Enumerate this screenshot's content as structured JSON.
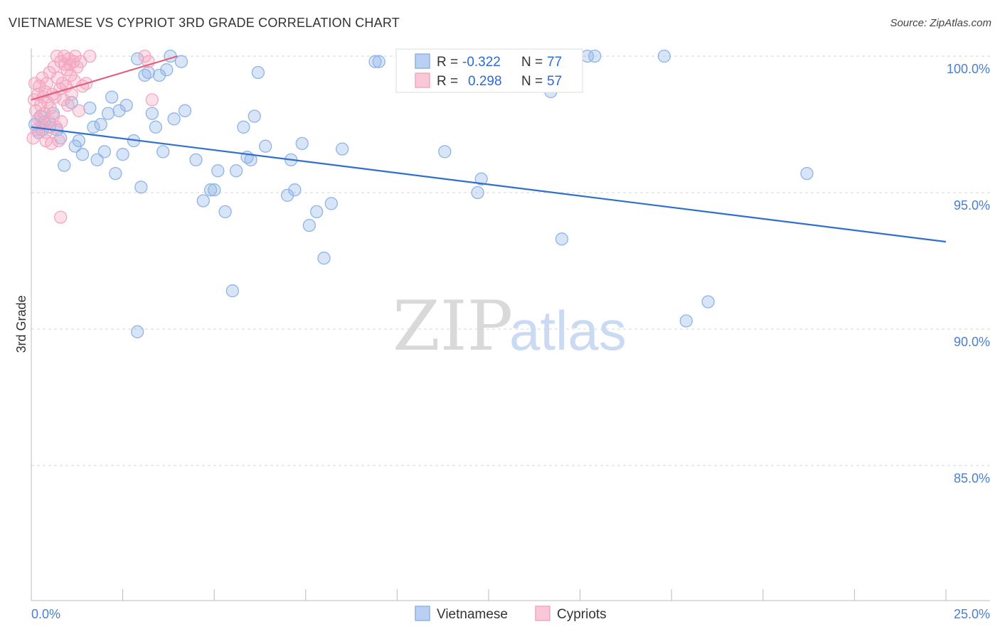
{
  "title": "VIETNAMESE VS CYPRIOT 3RD GRADE CORRELATION CHART",
  "source": "Source: ZipAtlas.com",
  "watermark": {
    "zip": "ZIP",
    "atlas": "atlas"
  },
  "chart_data": {
    "type": "scatter",
    "title": "VIETNAMESE VS CYPRIOT 3RD GRADE CORRELATION CHART",
    "xlabel": "",
    "ylabel": "3rd Grade",
    "xlim": [
      0,
      25
    ],
    "ylim": [
      80.5,
      101.5
    ],
    "x_tick_labels": {
      "left": "0.0%",
      "right": "25.0%"
    },
    "y_ticks": [
      {
        "value": 100,
        "label": "100.0%"
      },
      {
        "value": 95,
        "label": "95.0%"
      },
      {
        "value": 90,
        "label": "90.0%"
      },
      {
        "value": 85,
        "label": "85.0%"
      }
    ],
    "grid": true,
    "legend_position": "bottom",
    "stats_box": [
      {
        "r_label": "R =",
        "r_value": "-0.322",
        "n_label": "N =",
        "n_value": "77"
      },
      {
        "r_label": "R =",
        "r_value": "0.298",
        "n_label": "N =",
        "n_value": "57"
      }
    ],
    "series": [
      {
        "name": "Vietnamese",
        "color": "#8fb4e8",
        "line_color": "#2e6fd0",
        "trend": {
          "x0": 0.0,
          "y0": 97.4,
          "x1": 25.0,
          "y1": 93.2
        },
        "points": [
          [
            0.1,
            97.5
          ],
          [
            0.2,
            97.2
          ],
          [
            0.25,
            97.8
          ],
          [
            0.3,
            97.3
          ],
          [
            0.35,
            97.6
          ],
          [
            0.5,
            97.4
          ],
          [
            0.6,
            97.9
          ],
          [
            0.7,
            97.3
          ],
          [
            0.8,
            97.0
          ],
          [
            0.9,
            96.0
          ],
          [
            1.1,
            98.3
          ],
          [
            1.2,
            96.7
          ],
          [
            1.3,
            96.9
          ],
          [
            1.4,
            96.4
          ],
          [
            1.6,
            98.1
          ],
          [
            1.7,
            97.4
          ],
          [
            1.8,
            96.2
          ],
          [
            1.9,
            97.5
          ],
          [
            2.0,
            96.5
          ],
          [
            2.1,
            97.9
          ],
          [
            2.2,
            98.5
          ],
          [
            2.3,
            95.7
          ],
          [
            2.4,
            98.0
          ],
          [
            2.5,
            96.4
          ],
          [
            2.6,
            98.2
          ],
          [
            2.8,
            96.9
          ],
          [
            2.9,
            99.9
          ],
          [
            3.0,
            95.2
          ],
          [
            3.1,
            99.3
          ],
          [
            3.2,
            99.4
          ],
          [
            3.3,
            97.9
          ],
          [
            3.4,
            97.4
          ],
          [
            3.5,
            99.3
          ],
          [
            3.6,
            96.5
          ],
          [
            3.7,
            99.5
          ],
          [
            3.8,
            100.0
          ],
          [
            3.9,
            97.7
          ],
          [
            4.1,
            99.8
          ],
          [
            4.2,
            98.0
          ],
          [
            4.5,
            96.2
          ],
          [
            4.7,
            94.7
          ],
          [
            4.9,
            95.1
          ],
          [
            5.0,
            95.1
          ],
          [
            5.1,
            95.8
          ],
          [
            5.3,
            94.3
          ],
          [
            5.5,
            91.4
          ],
          [
            5.6,
            95.8
          ],
          [
            5.8,
            97.4
          ],
          [
            5.9,
            96.3
          ],
          [
            6.0,
            96.2
          ],
          [
            6.1,
            97.8
          ],
          [
            6.2,
            99.4
          ],
          [
            6.4,
            96.7
          ],
          [
            7.1,
            96.2
          ],
          [
            7.2,
            95.1
          ],
          [
            7.0,
            94.9
          ],
          [
            7.4,
            96.8
          ],
          [
            7.6,
            93.8
          ],
          [
            7.8,
            94.3
          ],
          [
            8.0,
            92.6
          ],
          [
            8.2,
            94.6
          ],
          [
            8.5,
            96.6
          ],
          [
            9.4,
            99.8
          ],
          [
            9.5,
            99.8
          ],
          [
            2.9,
            89.9
          ],
          [
            11.3,
            96.5
          ],
          [
            11.9,
            100.0
          ],
          [
            12.3,
            95.5
          ],
          [
            12.2,
            95.0
          ],
          [
            14.2,
            98.7
          ],
          [
            14.5,
            93.3
          ],
          [
            15.2,
            100.0
          ],
          [
            15.4,
            100.0
          ],
          [
            17.3,
            100.0
          ],
          [
            17.9,
            90.3
          ],
          [
            18.5,
            91.0
          ],
          [
            21.2,
            95.7
          ]
        ]
      },
      {
        "name": "Cypriots",
        "color": "#f4a7c0",
        "line_color": "#e0607e",
        "trend": {
          "x0": 0.0,
          "y0": 98.4,
          "x1": 4.0,
          "y1": 100.0
        },
        "points": [
          [
            0.05,
            97.0
          ],
          [
            0.08,
            98.4
          ],
          [
            0.1,
            99.0
          ],
          [
            0.12,
            98.0
          ],
          [
            0.15,
            97.3
          ],
          [
            0.18,
            98.6
          ],
          [
            0.2,
            97.7
          ],
          [
            0.22,
            98.9
          ],
          [
            0.25,
            98.2
          ],
          [
            0.28,
            97.5
          ],
          [
            0.3,
            99.2
          ],
          [
            0.32,
            98.5
          ],
          [
            0.35,
            97.9
          ],
          [
            0.38,
            98.7
          ],
          [
            0.4,
            97.2
          ],
          [
            0.42,
            99.0
          ],
          [
            0.45,
            98.3
          ],
          [
            0.48,
            97.6
          ],
          [
            0.5,
            99.4
          ],
          [
            0.52,
            98.1
          ],
          [
            0.55,
            96.8
          ],
          [
            0.58,
            98.6
          ],
          [
            0.6,
            97.8
          ],
          [
            0.62,
            99.6
          ],
          [
            0.65,
            98.5
          ],
          [
            0.68,
            97.4
          ],
          [
            0.7,
            100.0
          ],
          [
            0.72,
            99.2
          ],
          [
            0.75,
            96.9
          ],
          [
            0.78,
            98.8
          ],
          [
            0.8,
            99.8
          ],
          [
            0.82,
            97.6
          ],
          [
            0.85,
            99.0
          ],
          [
            0.88,
            98.4
          ],
          [
            0.9,
            100.0
          ],
          [
            0.92,
            99.7
          ],
          [
            0.95,
            98.9
          ],
          [
            0.98,
            99.5
          ],
          [
            1.0,
            98.2
          ],
          [
            1.02,
            99.9
          ],
          [
            1.05,
            99.7
          ],
          [
            1.08,
            99.3
          ],
          [
            1.1,
            98.6
          ],
          [
            1.15,
            99.8
          ],
          [
            1.18,
            99.1
          ],
          [
            1.2,
            100.0
          ],
          [
            1.25,
            99.6
          ],
          [
            1.3,
            98.0
          ],
          [
            1.35,
            99.8
          ],
          [
            1.4,
            98.9
          ],
          [
            1.5,
            99.0
          ],
          [
            1.6,
            100.0
          ],
          [
            3.1,
            100.0
          ],
          [
            3.2,
            99.8
          ],
          [
            3.3,
            98.4
          ],
          [
            0.4,
            96.9
          ],
          [
            0.8,
            94.1
          ]
        ]
      }
    ]
  },
  "legend": {
    "items": [
      "Vietnamese",
      "Cypriots"
    ]
  }
}
